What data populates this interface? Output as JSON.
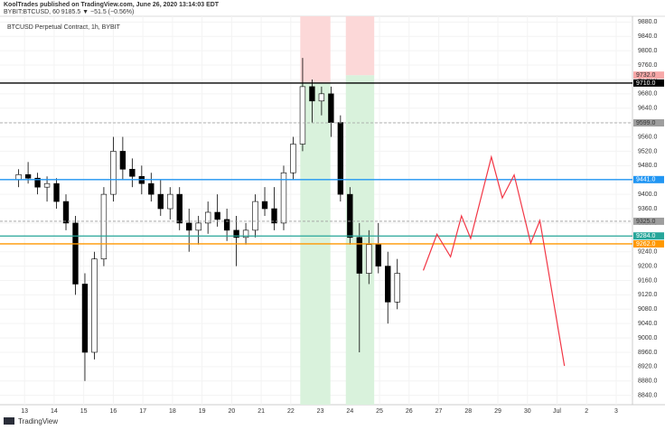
{
  "header": {
    "publisher": "KoolTrades published on TradingView.com, June 26, 2020 13:14:03 EDT",
    "symbol": "BYBIT:BTCUSD, 60  9185.5 ▼ −51.5 (−0.56%)"
  },
  "footer": {
    "brand": "TradingView"
  },
  "chart_data": {
    "type": "candlestick",
    "legend": "BTCUSD Perpetual Contract, 1h, BYBIT",
    "xlim": [
      12.17,
      33.55
    ],
    "xticks": [
      13,
      14,
      15,
      16,
      17,
      18,
      19,
      20,
      21,
      22,
      23,
      24,
      25,
      26,
      27,
      28,
      29,
      30,
      {
        "value": 31,
        "label": "Jul"
      },
      {
        "value": 32,
        "label": "2"
      },
      {
        "value": 33,
        "label": "3"
      }
    ],
    "ylim": [
      8814,
      9896
    ],
    "yticks": [
      {
        "value": 8840,
        "label": "8840.0"
      },
      {
        "value": 8880,
        "label": "8880.0"
      },
      {
        "value": 8920,
        "label": "8920.0"
      },
      {
        "value": 8960,
        "label": "8960.0"
      },
      {
        "value": 9000,
        "label": "9000.0"
      },
      {
        "value": 9040,
        "label": "9040.0"
      },
      {
        "value": 9080,
        "label": "9080.0"
      },
      {
        "value": 9120,
        "label": "9120.0"
      },
      {
        "value": 9160,
        "label": "9160.0"
      },
      {
        "value": 9200,
        "label": "9200.0"
      },
      {
        "value": 9240,
        "label": "9240.0"
      },
      {
        "value": 9280,
        "label": "9280.0"
      },
      {
        "value": 9320,
        "label": "9320.0"
      },
      {
        "value": 9360,
        "label": "9360.0"
      },
      {
        "value": 9400,
        "label": "9400.0"
      },
      {
        "value": 9440,
        "label": "9440.0"
      },
      {
        "value": 9480,
        "label": "9480.0"
      },
      {
        "value": 9520,
        "label": "9520.0"
      },
      {
        "value": 9560,
        "label": "9560.0"
      },
      {
        "value": 9600,
        "label": "9600.0"
      },
      {
        "value": 9640,
        "label": "9640.0"
      },
      {
        "value": 9680,
        "label": "9680.0"
      },
      {
        "value": 9720,
        "label": "9720.0"
      },
      {
        "value": 9760,
        "label": "9760.0"
      },
      {
        "value": 9800,
        "label": "9800.0"
      },
      {
        "value": 9840,
        "label": "9840.0"
      },
      {
        "value": 9880,
        "label": "9880.0"
      }
    ],
    "x": [
      12.8,
      13.12,
      13.44,
      13.76,
      14.08,
      14.4,
      14.72,
      15.04,
      15.36,
      15.68,
      16.0,
      16.32,
      16.64,
      16.96,
      17.28,
      17.6,
      17.92,
      18.24,
      18.56,
      18.88,
      19.2,
      19.52,
      19.84,
      20.16,
      20.48,
      20.8,
      21.12,
      21.44,
      21.76,
      22.08,
      22.4,
      22.72,
      23.04,
      23.36,
      23.68,
      24.0,
      24.32,
      24.64,
      24.96,
      25.28,
      25.6
    ],
    "open": [
      9440,
      9455,
      9445,
      9420,
      9430,
      9380,
      9320,
      9150,
      8960,
      9220,
      9400,
      9520,
      9470,
      9450,
      9430,
      9400,
      9360,
      9400,
      9320,
      9300,
      9320,
      9350,
      9330,
      9300,
      9280,
      9300,
      9380,
      9360,
      9320,
      9460,
      9540,
      9700,
      9660,
      9680,
      9600,
      9400,
      9280,
      9180,
      9260,
      9200,
      9100
    ],
    "high": [
      9470,
      9490,
      9460,
      9450,
      9445,
      9400,
      9340,
      9180,
      9240,
      9420,
      9560,
      9560,
      9500,
      9480,
      9460,
      9440,
      9420,
      9420,
      9360,
      9340,
      9380,
      9400,
      9360,
      9340,
      9320,
      9400,
      9420,
      9420,
      9480,
      9560,
      9780,
      9720,
      9700,
      9700,
      9620,
      9420,
      9320,
      9300,
      9320,
      9240,
      9220
    ],
    "low": [
      9420,
      9430,
      9400,
      9380,
      9360,
      9300,
      9120,
      8880,
      8940,
      9200,
      9380,
      9440,
      9420,
      9400,
      9380,
      9340,
      9330,
      9300,
      9240,
      9260,
      9290,
      9310,
      9270,
      9200,
      9260,
      9280,
      9340,
      9300,
      9300,
      9440,
      9520,
      9600,
      9620,
      9560,
      9380,
      9260,
      8960,
      9150,
      9180,
      9040,
      9080
    ],
    "close": [
      9455,
      9445,
      9420,
      9430,
      9380,
      9320,
      9150,
      8960,
      9220,
      9400,
      9520,
      9470,
      9450,
      9430,
      9400,
      9360,
      9400,
      9320,
      9300,
      9320,
      9350,
      9330,
      9300,
      9280,
      9300,
      9380,
      9360,
      9320,
      9460,
      9540,
      9700,
      9660,
      9680,
      9600,
      9400,
      9280,
      9180,
      9260,
      9200,
      9100,
      9180
    ],
    "up_color": "#ffffff",
    "down_color": "#000000",
    "levels": [
      {
        "value": 9732,
        "label": "9732.0",
        "color": "#f7a8a8",
        "style": "none"
      },
      {
        "value": 9710,
        "label": "9710.0",
        "color": "#000000",
        "style": "solid"
      },
      {
        "value": 9599,
        "label": "9599.0",
        "color": "#9e9e9e",
        "style": "dashed"
      },
      {
        "value": 9441,
        "label": "9441.0",
        "color": "#2196f3",
        "style": "solid"
      },
      {
        "value": 9325,
        "label": "9325.0",
        "color": "#9e9e9e",
        "style": "dashed"
      },
      {
        "value": 9284,
        "label": "9284.0",
        "color": "#26a69a",
        "style": "solid"
      },
      {
        "value": 9262,
        "label": "9262.0",
        "color": "#ff9800",
        "style": "solid"
      }
    ],
    "zones": [
      {
        "x": [
          22.32,
          23.34
        ],
        "y": [
          8814,
          9710
        ],
        "color": "#d9f2dc"
      },
      {
        "x": [
          22.32,
          23.34
        ],
        "y": [
          9710,
          9896
        ],
        "color": "#fcd8d8"
      },
      {
        "x": [
          23.86,
          24.82
        ],
        "y": [
          8814,
          9732
        ],
        "color": "#d9f2dc"
      },
      {
        "x": [
          23.86,
          24.82
        ],
        "y": [
          9732,
          9896
        ],
        "color": "#fcd8d8"
      }
    ],
    "series": [
      {
        "name": "projection",
        "color": "#f23645",
        "x": [
          26.48,
          26.94,
          27.4,
          27.77,
          28.08,
          28.78,
          29.15,
          29.55,
          30.11,
          30.42,
          31.25
        ],
        "values": [
          9188,
          9289,
          9226,
          9340,
          9277,
          9504,
          9390,
          9454,
          9264,
          9327,
          8922
        ]
      }
    ]
  }
}
